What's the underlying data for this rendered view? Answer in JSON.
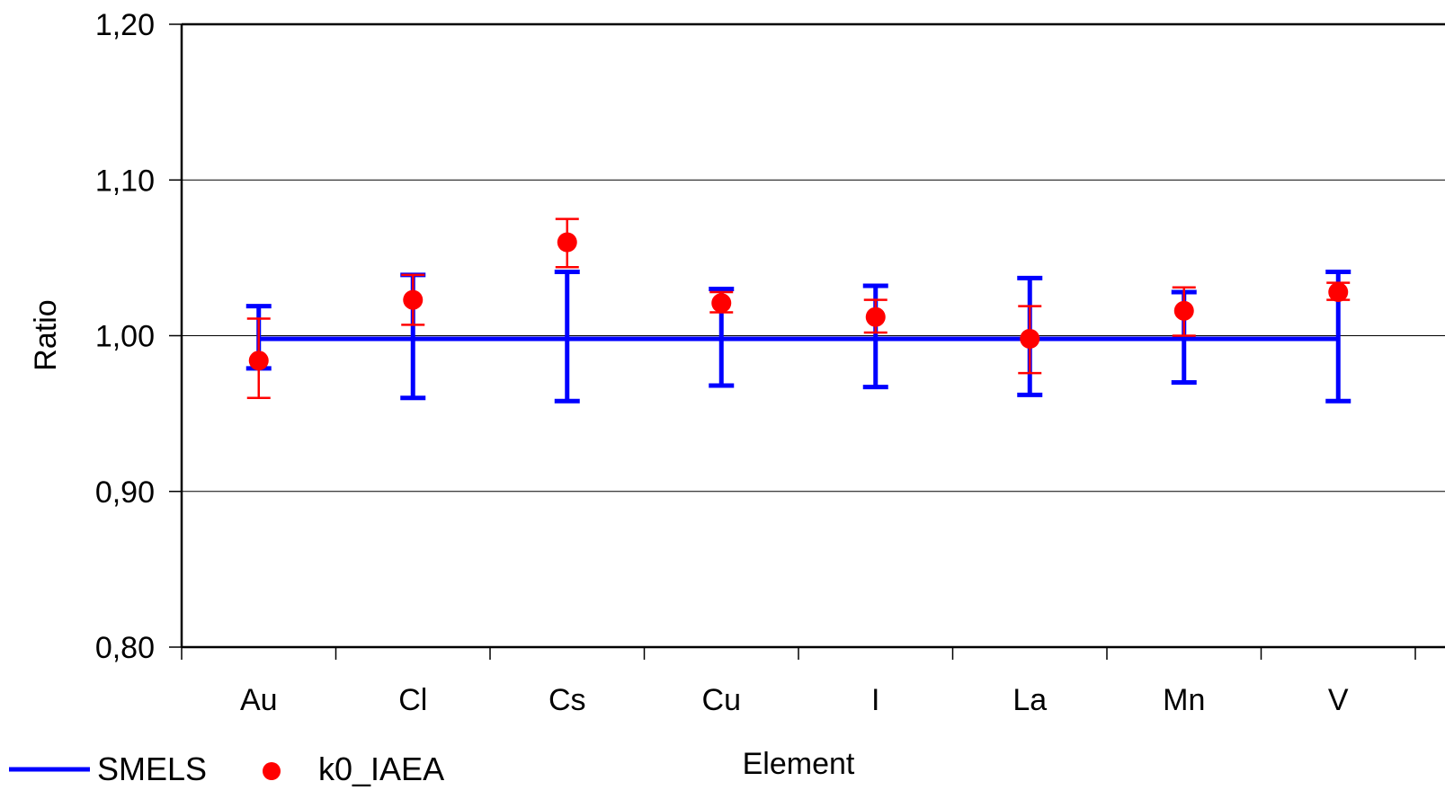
{
  "chart_data": {
    "type": "scatter",
    "title": "",
    "xlabel": "Element",
    "ylabel": "Ratio",
    "categories": [
      "Au",
      "Cl",
      "Cs",
      "Cu",
      "I",
      "La",
      "Mn",
      "V"
    ],
    "ylim": [
      0.8,
      1.2
    ],
    "yticks": [
      0.8,
      0.9,
      1.0,
      1.1,
      1.2
    ],
    "ytick_labels": [
      "0,80",
      "0,90",
      "1,00",
      "1,10",
      "1,20"
    ],
    "grid": true,
    "legend_position": "bottom-left",
    "series": [
      {
        "name": "SMELS",
        "marker": "line",
        "color": "#0000ff",
        "values": [
          0.998,
          0.998,
          0.998,
          0.998,
          0.998,
          0.998,
          0.998,
          0.998
        ],
        "err_low": [
          0.979,
          0.96,
          0.958,
          0.968,
          0.967,
          0.962,
          0.97,
          0.958
        ],
        "err_high": [
          1.019,
          1.039,
          1.041,
          1.03,
          1.032,
          1.037,
          1.028,
          1.041
        ]
      },
      {
        "name": "k0_IAEA",
        "marker": "circle",
        "color": "#ff0000",
        "values": [
          0.984,
          1.023,
          1.06,
          1.021,
          1.012,
          0.998,
          1.016,
          1.028
        ],
        "err_low": [
          0.96,
          1.007,
          1.044,
          1.015,
          1.002,
          0.976,
          1.0,
          1.023
        ],
        "err_high": [
          1.011,
          1.039,
          1.075,
          1.028,
          1.023,
          1.019,
          1.031,
          1.034
        ]
      }
    ]
  }
}
